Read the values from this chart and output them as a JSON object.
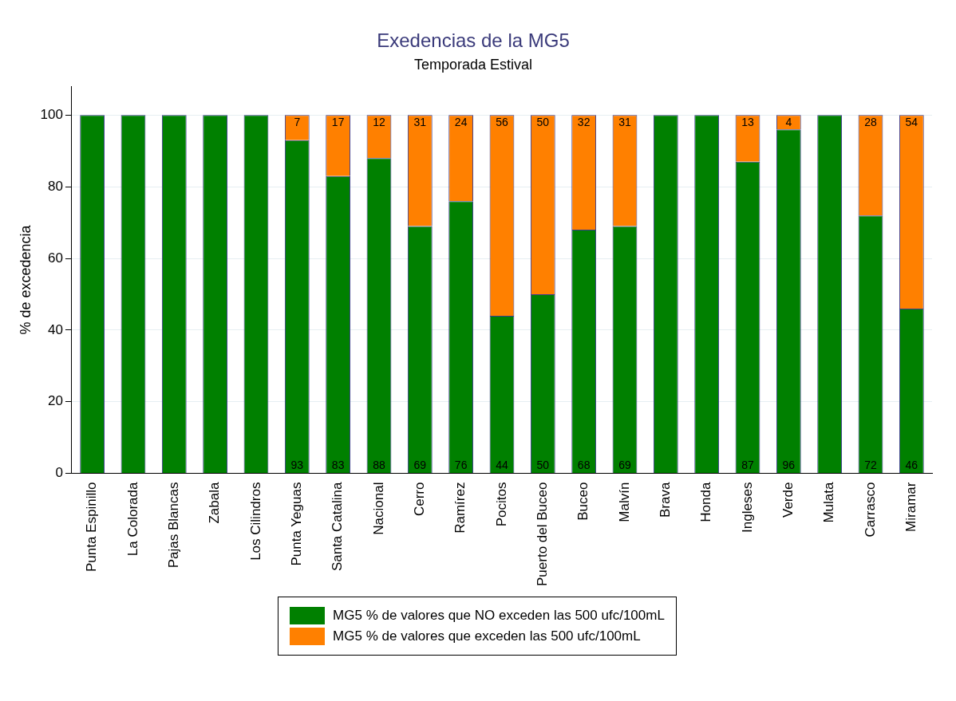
{
  "chart_data": {
    "type": "bar",
    "title": "Exedencias de la MG5",
    "subtitle": "Temporada Estival",
    "ylabel": "% de excedencia",
    "categories": [
      "Punta Espinillo",
      "La Colorada",
      "Pajas Blancas",
      "Zabala",
      "Los Cilindros",
      "Punta Yeguas",
      "Santa Catalina",
      "Nacional",
      "Cerro",
      "Ramírez",
      "Pocitos",
      "Puerto del Buceo",
      "Buceo",
      "Malvín",
      "Brava",
      "Honda",
      "Ingleses",
      "Verde",
      "Mulata",
      "Carrasco",
      "Miramar"
    ],
    "stacked": true,
    "series": [
      {
        "name": "MG5 % de valores que NO exceden las 500 ufc/100mL",
        "color": "#008000",
        "values": [
          100,
          100,
          100,
          100,
          100,
          93,
          83,
          88,
          69,
          76,
          44,
          50,
          68,
          69,
          100,
          100,
          87,
          96,
          100,
          72,
          46
        ],
        "value_labels": [
          null,
          null,
          null,
          null,
          null,
          "93",
          "83",
          "88",
          "69",
          "76",
          "44",
          "50",
          "68",
          "69",
          null,
          null,
          "87",
          "96",
          null,
          "72",
          "46"
        ]
      },
      {
        "name": "MG5 % de valores que exceden las 500 ufc/100mL",
        "color": "#ff8000",
        "values": [
          null,
          null,
          null,
          null,
          null,
          7,
          17,
          12,
          31,
          24,
          56,
          50,
          32,
          31,
          null,
          null,
          13,
          4,
          null,
          28,
          54
        ],
        "value_labels": [
          null,
          null,
          null,
          null,
          null,
          "7",
          "17",
          "12",
          "31",
          "24",
          "56",
          "50",
          "32",
          "31",
          null,
          null,
          "13",
          "4",
          null,
          "28",
          "54"
        ]
      }
    ],
    "ylim": [
      0,
      108
    ],
    "yticks": [
      0,
      20,
      40,
      60,
      80,
      100
    ],
    "grid": "y",
    "legend": "bottom"
  }
}
